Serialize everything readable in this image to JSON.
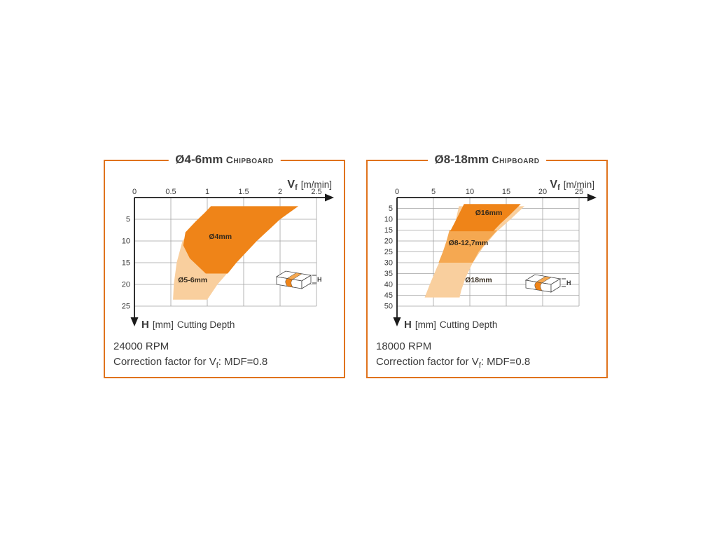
{
  "page": {
    "background": "#ffffff",
    "accent": "#e0731d"
  },
  "panels": [
    {
      "title": {
        "range": "Ø4-6mm",
        "material": "Chipboard"
      },
      "vf_label": {
        "v": "V",
        "sub": "f",
        "unit": "[m/min]"
      },
      "caption": {
        "h": "H",
        "unit": "[mm]",
        "text": "Cutting Depth"
      },
      "rpm": "24000 RPM",
      "correction": {
        "before": "Correction factor for V",
        "sub": "f",
        "after": ": MDF=0.8"
      },
      "icon_label": "H"
    },
    {
      "title": {
        "range": "Ø8-18mm",
        "material": "Chipboard"
      },
      "vf_label": {
        "v": "V",
        "sub": "f",
        "unit": "[m/min]"
      },
      "caption": {
        "h": "H",
        "unit": "[mm]",
        "text": "Cutting Depth"
      },
      "rpm": "18000 RPM",
      "correction": {
        "before": "Correction factor for V",
        "sub": "f",
        "after": ": MDF=0.8"
      },
      "icon_label": "H"
    }
  ],
  "chart_data": [
    {
      "type": "area",
      "title": "Ø4-6mm Chipboard",
      "xlabel": "Vf [m/min]",
      "ylabel": "H [mm] Cutting Depth",
      "xlim": [
        0,
        2.5
      ],
      "ylim": [
        0,
        25
      ],
      "y_axis_inverted": true,
      "x_ticks": [
        0,
        0.5,
        1,
        1.5,
        2,
        2.5
      ],
      "y_ticks": [
        5,
        10,
        15,
        20,
        25
      ],
      "grid": true,
      "rpm": 24000,
      "note": "Correction factor for Vf: MDF=0.8",
      "series": [
        {
          "name": "Ø5-6mm",
          "color": "#f9cf9e",
          "polygon": [
            [
              1.05,
              2
            ],
            [
              2.25,
              2
            ],
            [
              2.0,
              5
            ],
            [
              1.68,
              10
            ],
            [
              1.4,
              15
            ],
            [
              1.14,
              20
            ],
            [
              1.0,
              23.5
            ],
            [
              0.53,
              23.5
            ],
            [
              0.54,
              20
            ],
            [
              0.58,
              15
            ],
            [
              0.66,
              10
            ],
            [
              0.9,
              5
            ]
          ]
        },
        {
          "name": "Ø4mm",
          "color": "#ef8418",
          "polygon": [
            [
              1.05,
              2
            ],
            [
              2.25,
              2
            ],
            [
              2.0,
              5
            ],
            [
              1.68,
              10
            ],
            [
              1.4,
              15
            ],
            [
              1.28,
              17.5
            ],
            [
              0.98,
              17.5
            ],
            [
              0.76,
              14
            ],
            [
              0.67,
              11
            ],
            [
              0.7,
              8
            ],
            [
              0.84,
              5.5
            ],
            [
              0.96,
              3.6
            ]
          ]
        }
      ],
      "annotations": [
        {
          "text": "Ø4mm",
          "x": 1.18,
          "y": 9.5
        },
        {
          "text": "Ø5-6mm",
          "x": 0.8,
          "y": 19.5
        }
      ]
    },
    {
      "type": "area",
      "title": "Ø8-18mm Chipboard",
      "xlabel": "Vf [m/min]",
      "ylabel": "H [mm] Cutting Depth",
      "xlim": [
        0,
        25
      ],
      "ylim": [
        0,
        50
      ],
      "y_axis_inverted": true,
      "x_ticks": [
        0,
        5,
        10,
        15,
        20,
        25
      ],
      "y_ticks": [
        5,
        10,
        15,
        20,
        25,
        30,
        35,
        40,
        45,
        50
      ],
      "grid": true,
      "rpm": 18000,
      "note": "Correction factor for Vf: MDF=0.8",
      "series": [
        {
          "name": "Ø18mm",
          "color": "#f9cf9e",
          "polygon": [
            [
              8.5,
              4
            ],
            [
              17.5,
              4
            ],
            [
              15.6,
              10
            ],
            [
              13.6,
              16
            ],
            [
              11.8,
              23
            ],
            [
              10.4,
              30
            ],
            [
              9.4,
              37
            ],
            [
              8.8,
              43
            ],
            [
              8.6,
              46
            ],
            [
              3.8,
              46
            ],
            [
              4.5,
              40
            ],
            [
              5.5,
              32
            ],
            [
              6.7,
              24
            ],
            [
              7.5,
              17
            ],
            [
              8.1,
              10
            ]
          ]
        },
        {
          "name": "Ø8-12,7mm",
          "color": "#f5a851",
          "polygon": [
            [
              7.2,
              15
            ],
            [
              13.8,
              15
            ],
            [
              12.4,
              20
            ],
            [
              11.2,
              25
            ],
            [
              10.4,
              30
            ],
            [
              5.7,
              30
            ],
            [
              6.3,
              25
            ],
            [
              6.8,
              20
            ]
          ]
        },
        {
          "name": "Ø16mm",
          "color": "#ef8418",
          "polygon": [
            [
              9.2,
              3
            ],
            [
              17.0,
              3
            ],
            [
              15.5,
              8
            ],
            [
              14.2,
              12
            ],
            [
              13.2,
              15.5
            ],
            [
              7.3,
              15.5
            ],
            [
              8.0,
              11
            ],
            [
              8.6,
              7
            ]
          ]
        }
      ],
      "annotations": [
        {
          "text": "Ø16mm",
          "x": 12.6,
          "y": 8
        },
        {
          "text": "Ø8-12,7mm",
          "x": 9.8,
          "y": 22
        },
        {
          "text": "Ø18mm",
          "x": 11.2,
          "y": 39
        }
      ]
    }
  ]
}
